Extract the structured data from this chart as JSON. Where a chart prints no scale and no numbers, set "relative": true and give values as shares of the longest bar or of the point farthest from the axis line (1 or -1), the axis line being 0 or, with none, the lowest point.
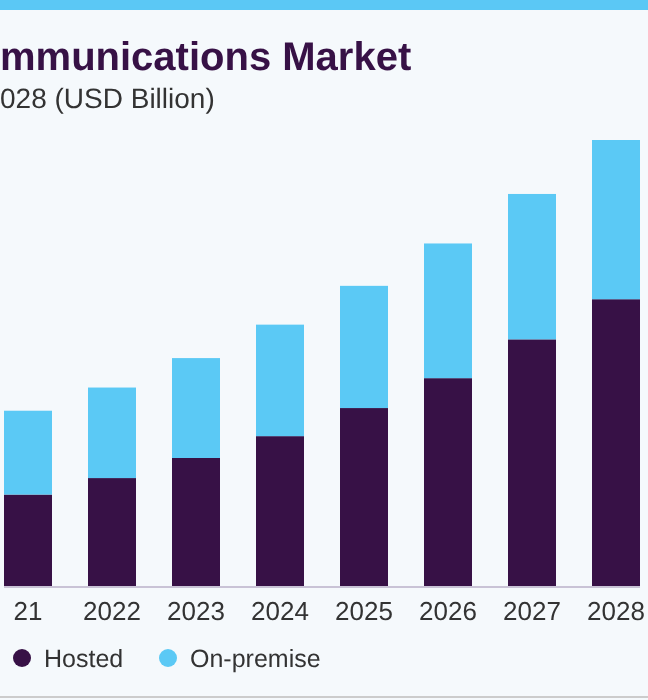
{
  "chart_data": {
    "type": "bar",
    "title": "mmunications Market",
    "subtitle": "028 (USD Billion)",
    "categories": [
      "21",
      "2022",
      "2023",
      "2024",
      "2025",
      "2026",
      "2027",
      "2028"
    ],
    "stacked": true,
    "relative": true,
    "legend": "bottom",
    "series": [
      {
        "name": "Hosted",
        "color": "#371146",
        "values": [
          0.205,
          0.242,
          0.287,
          0.336,
          0.399,
          0.466,
          0.553,
          0.643
        ]
      },
      {
        "name": "On-premise",
        "color": "#5bc9f5",
        "values": [
          0.188,
          0.203,
          0.224,
          0.25,
          0.274,
          0.302,
          0.326,
          0.357
        ]
      }
    ]
  }
}
